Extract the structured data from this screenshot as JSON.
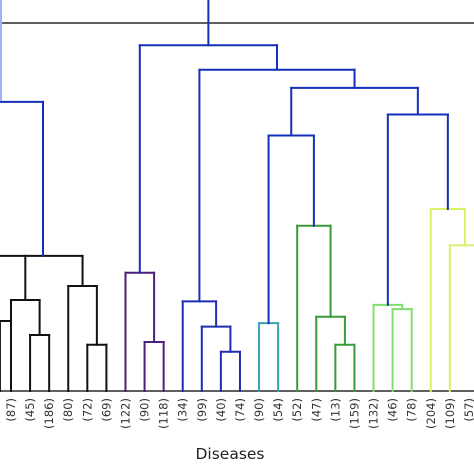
{
  "chart_data": {
    "type": "dendrogram",
    "xlabel": "Diseases",
    "ylabel": "",
    "grid": false,
    "leaves": [
      "(87)",
      "(45)",
      "(186)",
      "(80)",
      "(72)",
      "(69)",
      "(122)",
      "(90)",
      "(118)",
      "(34)",
      "(99)",
      "(40)",
      "(74)",
      "(90)",
      "(54)",
      "(52)",
      "(47)",
      "(13)",
      "(159)",
      "(132)",
      "(46)",
      "(78)",
      "(204)",
      "(109)",
      "(57)"
    ],
    "colors": {
      "link": "#1530b8",
      "link_offscreen": "#9fb2f5",
      "black": "#111111",
      "purple": "#4d1f79",
      "navy": "#1f2fb0",
      "teal": "#3aa0b3",
      "green": "#3b9a3b",
      "lightgreen": "#7fe06a",
      "yellowgreen": "#d8f26a"
    },
    "merges": [
      {
        "leaves": [
          "(87)"
        ],
        "height": 0.8,
        "color": "black",
        "partial": true
      },
      {
        "leaves": [
          "(45)",
          "(186)"
        ],
        "height": 0.78,
        "color": "black"
      },
      {
        "leaves": [
          "(87)",
          "(45)",
          "(186)"
        ],
        "height": 0.83,
        "color": "black",
        "partial": true
      },
      {
        "leaves": [
          "(72)",
          "(69)"
        ],
        "height": 0.766,
        "color": "black"
      },
      {
        "leaves": [
          "(80)",
          "(72)",
          "(69)"
        ],
        "height": 0.85,
        "color": "black"
      },
      {
        "leaves": [
          "(87)",
          "(45)",
          "(186)",
          "(80)",
          "(72)",
          "(69)"
        ],
        "height": 0.893,
        "color": "black",
        "partial": true
      },
      {
        "leaves": [
          "(87)",
          "(45)",
          "(186)",
          "(80)",
          "(72)",
          "(69)"
        ],
        "height": 1.113,
        "color": "link",
        "partial": true
      },
      {
        "leaves": [
          "(90)",
          "(118)"
        ],
        "height": 0.77,
        "color": "purple"
      },
      {
        "leaves": [
          "(122)",
          "(90)",
          "(118)"
        ],
        "height": 0.869,
        "color": "purple"
      },
      {
        "leaves": [
          "(40)",
          "(74)"
        ],
        "height": 0.756,
        "color": "navy"
      },
      {
        "leaves": [
          "(99)",
          "(40)",
          "(74)"
        ],
        "height": 0.792,
        "color": "navy"
      },
      {
        "leaves": [
          "(34)",
          "(99)",
          "(40)",
          "(74)"
        ],
        "height": 0.828,
        "color": "navy"
      },
      {
        "leaves": [
          "(90)",
          "(54)"
        ],
        "height": 0.797,
        "color": "teal"
      },
      {
        "leaves": [
          "(13)",
          "(159)"
        ],
        "height": 0.766,
        "color": "green"
      },
      {
        "leaves": [
          "(47)",
          "(13)",
          "(159)"
        ],
        "height": 0.806,
        "color": "green"
      },
      {
        "leaves": [
          "(52)",
          "(47)",
          "(13)",
          "(159)"
        ],
        "height": 0.936,
        "color": "green"
      },
      {
        "leaves": [
          "(90)",
          "(54)",
          "(52)",
          "(47)",
          "(13)",
          "(159)"
        ],
        "height": 1.065,
        "color": "link"
      },
      {
        "leaves": [
          "(46)",
          "(78)"
        ],
        "height": 0.817,
        "color": "lightgreen"
      },
      {
        "leaves": [
          "(132)",
          "(46)",
          "(78)"
        ],
        "height": 0.823,
        "color": "lightgreen"
      },
      {
        "leaves": [
          "(109)",
          "(57)"
        ],
        "height": 0.908,
        "color": "yellowgreen",
        "partial": true
      },
      {
        "leaves": [
          "(204)",
          "(109)",
          "(57)"
        ],
        "height": 0.96,
        "color": "yellowgreen",
        "partial": true
      },
      {
        "leaves": [
          "(132)",
          "(46)",
          "(78)",
          "(204)",
          "(109)",
          "(57)"
        ],
        "height": 1.095,
        "color": "link",
        "partial": true
      },
      {
        "leaves": [
          "(90)",
          "(54)",
          "(52)",
          "(47)",
          "(13)",
          "(159)",
          "(132)",
          "(46)",
          "(78)",
          "(204)",
          "(109)",
          "(57)"
        ],
        "height": 1.133,
        "color": "link",
        "partial": true
      },
      {
        "leaves": [
          "(34)",
          "(99)",
          "(40)",
          "(74)",
          "(90)",
          "(54)",
          "(52)",
          "(47)",
          "(13)",
          "(159)",
          "(132)",
          "(46)",
          "(78)",
          "(204)",
          "(109)",
          "(57)"
        ],
        "height": 1.159,
        "color": "link",
        "partial": true
      },
      {
        "leaves": [
          "(122)",
          "(90)",
          "(118)",
          "(34)",
          "(99)",
          "(40)",
          "(74)",
          "(90)",
          "(54)",
          "(52)",
          "(47)",
          "(13)",
          "(159)",
          "(132)",
          "(46)",
          "(78)",
          "(204)",
          "(109)",
          "(57)"
        ],
        "height": 1.194,
        "color": "link",
        "partial": true
      },
      {
        "leaves": [
          "(87)",
          "(45)",
          "(186)",
          "(80)",
          "(72)",
          "(69)",
          "(122)",
          "(90)",
          "(118)",
          "(34)",
          "(99)",
          "(40)",
          "(74)",
          "(90)",
          "(54)",
          "(52)",
          "(47)",
          "(13)",
          "(159)",
          "(132)",
          "(46)",
          "(78)",
          "(204)",
          "(109)",
          "(57)"
        ],
        "height": 1.288,
        "color": "link",
        "partial": true
      }
    ]
  }
}
